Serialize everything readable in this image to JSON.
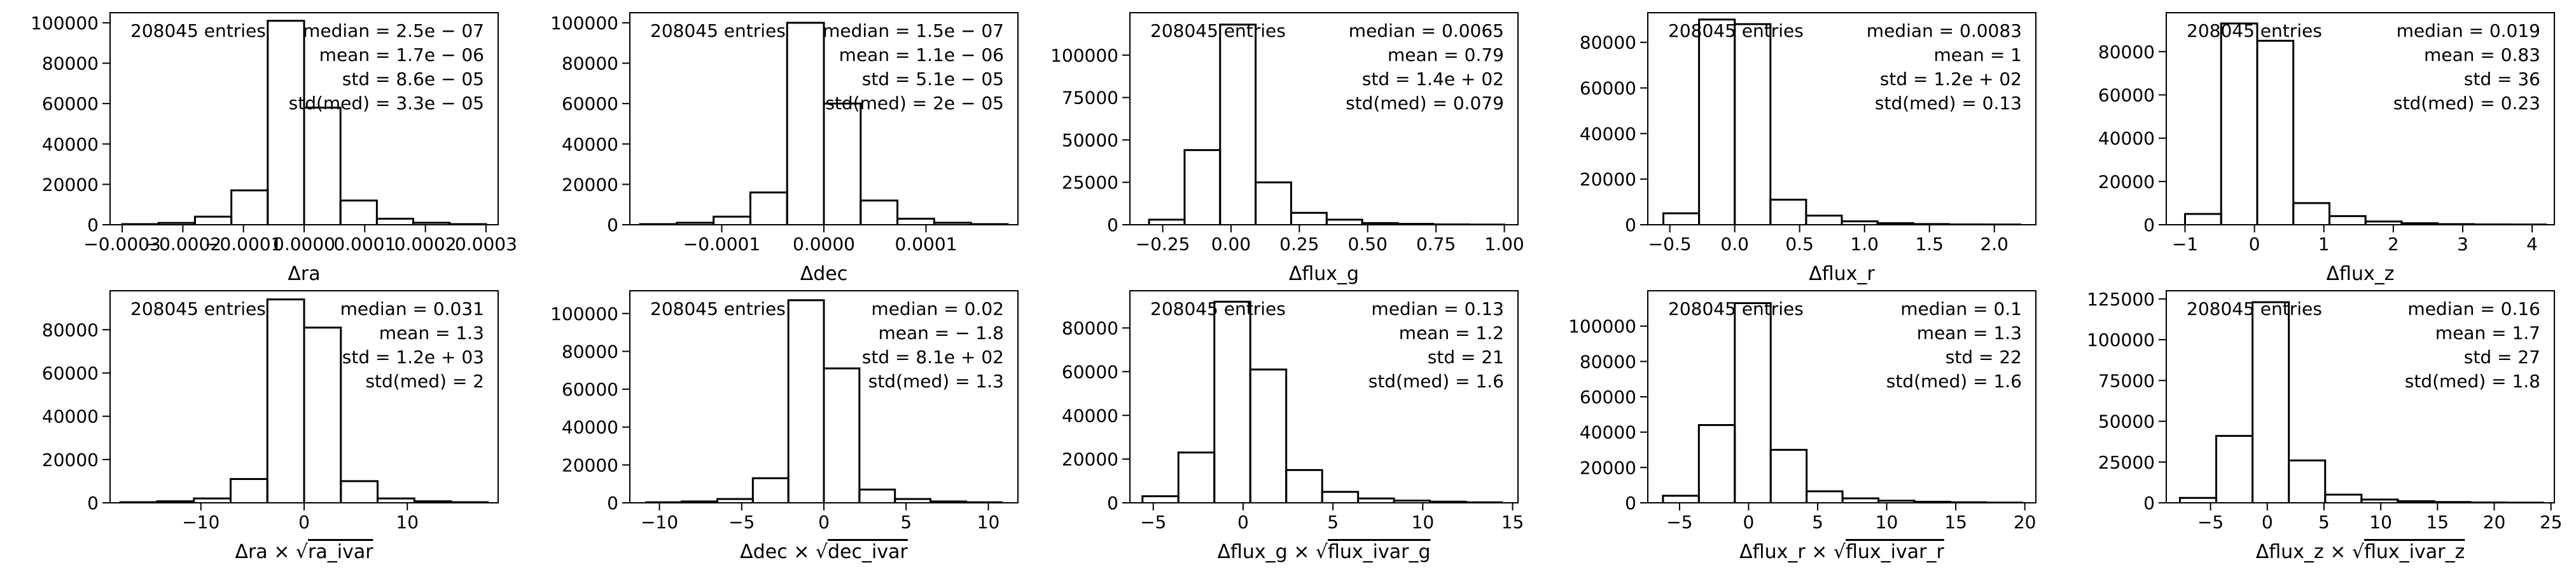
{
  "figure": {
    "entries_label": "208045 entries"
  },
  "chart_data": [
    {
      "type": "histogram",
      "xlabel": "Δra",
      "xlim": [
        -0.00032,
        0.00032
      ],
      "ylim": [
        0,
        105000
      ],
      "xticks": [
        -0.0003,
        -0.0002,
        -0.0001,
        0,
        0.0001,
        0.0002,
        0.0003
      ],
      "xtick_labels": [
        "−0.0003",
        "−0.0002",
        "−0.0001",
        "0.0000",
        "0.0001",
        "0.0002",
        "0.0003"
      ],
      "yticks": [
        0,
        20000,
        40000,
        60000,
        80000,
        100000
      ],
      "ytick_labels": [
        "0",
        "20000",
        "40000",
        "60000",
        "80000",
        "100000"
      ],
      "bin_edges": [
        -0.0003,
        -0.00024,
        -0.00018,
        -0.00012,
        -6e-05,
        0,
        6e-05,
        0.00012,
        0.00018,
        0.00024,
        0.0003
      ],
      "counts": [
        300,
        900,
        4000,
        17000,
        101000,
        58000,
        12000,
        3000,
        1000,
        300
      ],
      "stats": [
        "median = 2.5e − 07",
        "mean = 1.7e − 06",
        "std = 8.6e − 05",
        "std(med) = 3.3e − 05"
      ]
    },
    {
      "type": "histogram",
      "xlabel": "Δdec",
      "xlim": [
        -0.00019,
        0.00019
      ],
      "ylim": [
        0,
        105000
      ],
      "xticks": [
        -0.0001,
        0,
        0.0001
      ],
      "xtick_labels": [
        "−0.0001",
        "0.0000",
        "0.0001"
      ],
      "yticks": [
        0,
        20000,
        40000,
        60000,
        80000,
        100000
      ],
      "ytick_labels": [
        "0",
        "20000",
        "40000",
        "60000",
        "80000",
        "100000"
      ],
      "bin_edges": [
        -0.00018,
        -0.000144,
        -0.000108,
        -7.2e-05,
        -3.6e-05,
        0,
        3.6e-05,
        7.2e-05,
        0.000108,
        0.000144,
        0.00018
      ],
      "counts": [
        300,
        1000,
        4000,
        16000,
        100000,
        60000,
        12000,
        3000,
        1000,
        300
      ],
      "stats": [
        "median = 1.5e − 07",
        "mean = 1.1e − 06",
        "std = 5.1e − 05",
        "std(med) = 2e − 05"
      ]
    },
    {
      "type": "histogram",
      "xlabel": "Δflux_g",
      "xlim": [
        -0.37,
        1.05
      ],
      "ylim": [
        0,
        125000
      ],
      "xticks": [
        -0.25,
        0,
        0.25,
        0.5,
        0.75,
        1.0
      ],
      "xtick_labels": [
        "−0.25",
        "0.00",
        "0.25",
        "0.50",
        "0.75",
        "1.00"
      ],
      "yticks": [
        0,
        25000,
        50000,
        75000,
        100000
      ],
      "ytick_labels": [
        "0",
        "25000",
        "50000",
        "75000",
        "100000"
      ],
      "bin_edges": [
        -0.3,
        -0.17,
        -0.04,
        0.09,
        0.22,
        0.35,
        0.48,
        0.61,
        0.74,
        0.87,
        1.0
      ],
      "counts": [
        3000,
        44000,
        118000,
        25000,
        7000,
        3000,
        1000,
        500,
        200,
        100
      ],
      "stats": [
        "median = 0.0065",
        "mean = 0.79",
        "std = 1.4e + 02",
        "std(med) = 0.079"
      ]
    },
    {
      "type": "histogram",
      "xlabel": "Δflux_r",
      "xlim": [
        -0.67,
        2.32
      ],
      "ylim": [
        0,
        93000
      ],
      "xticks": [
        -0.5,
        0,
        0.5,
        1.0,
        1.5,
        2.0
      ],
      "xtick_labels": [
        "−0.5",
        "0.0",
        "0.5",
        "1.0",
        "1.5",
        "2.0"
      ],
      "yticks": [
        0,
        20000,
        40000,
        60000,
        80000
      ],
      "ytick_labels": [
        "0",
        "20000",
        "40000",
        "60000",
        "80000"
      ],
      "bin_edges": [
        -0.55,
        -0.275,
        0,
        0.275,
        0.55,
        0.825,
        1.1,
        1.375,
        1.65,
        1.925,
        2.2
      ],
      "counts": [
        5000,
        90000,
        88000,
        11000,
        4000,
        1500,
        700,
        300,
        150,
        100
      ],
      "stats": [
        "median = 0.0083",
        "mean = 1",
        "std = 1.2e + 02",
        "std(med) = 0.13"
      ]
    },
    {
      "type": "histogram",
      "xlabel": "Δflux_z",
      "xlim": [
        -1.27,
        4.32
      ],
      "ylim": [
        0,
        98000
      ],
      "xticks": [
        -1,
        0,
        1,
        2,
        3,
        4
      ],
      "xtick_labels": [
        "−1",
        "0",
        "1",
        "2",
        "3",
        "4"
      ],
      "yticks": [
        0,
        20000,
        40000,
        60000,
        80000
      ],
      "ytick_labels": [
        "0",
        "20000",
        "40000",
        "60000",
        "80000"
      ],
      "bin_edges": [
        -1.0,
        -0.48,
        0.04,
        0.56,
        1.08,
        1.6,
        2.12,
        2.64,
        3.16,
        3.68,
        4.2
      ],
      "counts": [
        5000,
        93000,
        85000,
        10000,
        4000,
        1500,
        700,
        300,
        150,
        100
      ],
      "stats": [
        "median = 0.019",
        "mean = 0.83",
        "std = 36",
        "std(med) = 0.23"
      ]
    },
    {
      "type": "histogram",
      "xlabel": "Δra × √ra_ivar",
      "xlim": [
        -18.8,
        18.8
      ],
      "ylim": [
        0,
        98000
      ],
      "xticks": [
        -10,
        0,
        10
      ],
      "xtick_labels": [
        "−10",
        "0",
        "10"
      ],
      "yticks": [
        0,
        20000,
        40000,
        60000,
        80000
      ],
      "ytick_labels": [
        "0",
        "20000",
        "40000",
        "60000",
        "80000"
      ],
      "bin_edges": [
        -17.8,
        -14.24,
        -10.68,
        -7.12,
        -3.56,
        0,
        3.56,
        7.12,
        10.68,
        14.24,
        17.8
      ],
      "counts": [
        300,
        700,
        2000,
        11000,
        94000,
        81000,
        10000,
        2000,
        700,
        300
      ],
      "stats": [
        "median = 0.031",
        "mean = 1.3",
        "std = 1.2e + 03",
        "std(med) = 2"
      ]
    },
    {
      "type": "histogram",
      "xlabel": "Δdec × √dec_ivar",
      "xlim": [
        -11.8,
        11.8
      ],
      "ylim": [
        0,
        112000
      ],
      "xticks": [
        -10,
        -5,
        0,
        5,
        10
      ],
      "xtick_labels": [
        "−10",
        "−5",
        "0",
        "5",
        "10"
      ],
      "yticks": [
        0,
        20000,
        40000,
        60000,
        80000,
        100000
      ],
      "ytick_labels": [
        "0",
        "20000",
        "40000",
        "60000",
        "80000",
        "100000"
      ],
      "bin_edges": [
        -10.8,
        -8.64,
        -6.48,
        -4.32,
        -2.16,
        0,
        2.16,
        4.32,
        6.48,
        8.64,
        10.8
      ],
      "counts": [
        300,
        700,
        2000,
        13000,
        107000,
        71000,
        7000,
        2000,
        700,
        300
      ],
      "stats": [
        "median = 0.02",
        "mean = − 1.8",
        "std = 8.1e + 02",
        "std(med) = 1.3"
      ]
    },
    {
      "type": "histogram",
      "xlabel": "Δflux_g × √flux_ivar_g",
      "xlim": [
        -6.3,
        15.3
      ],
      "ylim": [
        0,
        97000
      ],
      "xticks": [
        -5,
        0,
        5,
        10,
        15
      ],
      "xtick_labels": [
        "−5",
        "0",
        "5",
        "10",
        "15"
      ],
      "yticks": [
        0,
        20000,
        40000,
        60000,
        80000
      ],
      "ytick_labels": [
        "0",
        "20000",
        "40000",
        "60000",
        "80000"
      ],
      "bin_edges": [
        -5.6,
        -3.6,
        -1.6,
        0.4,
        2.4,
        4.4,
        6.4,
        8.4,
        10.4,
        12.4,
        14.4
      ],
      "counts": [
        3000,
        23000,
        92000,
        61000,
        15000,
        5000,
        2000,
        1000,
        500,
        200
      ],
      "stats": [
        "median = 0.13",
        "mean = 1.2",
        "std = 21",
        "std(med) = 1.6"
      ]
    },
    {
      "type": "histogram",
      "xlabel": "Δflux_r × √flux_ivar_r",
      "xlim": [
        -7.3,
        20.8
      ],
      "ylim": [
        0,
        120000
      ],
      "xticks": [
        -5,
        0,
        5,
        10,
        15,
        20
      ],
      "xtick_labels": [
        "−5",
        "0",
        "5",
        "10",
        "15",
        "20"
      ],
      "yticks": [
        0,
        20000,
        40000,
        60000,
        80000,
        100000
      ],
      "ytick_labels": [
        "0",
        "20000",
        "40000",
        "60000",
        "80000",
        "100000"
      ],
      "bin_edges": [
        -6.2,
        -3.6,
        -1.0,
        1.6,
        4.2,
        6.8,
        9.4,
        12.0,
        14.6,
        17.2,
        19.8
      ],
      "counts": [
        4000,
        44000,
        113000,
        30000,
        6500,
        2500,
        1200,
        600,
        300,
        150
      ],
      "stats": [
        "median = 0.1",
        "mean = 1.3",
        "std = 22",
        "std(med) = 1.6"
      ]
    },
    {
      "type": "histogram",
      "xlabel": "Δflux_z × √flux_ivar_z",
      "xlim": [
        -8.9,
        25.3
      ],
      "ylim": [
        0,
        130000
      ],
      "xticks": [
        -5,
        0,
        5,
        10,
        15,
        20,
        25
      ],
      "xtick_labels": [
        "−5",
        "0",
        "5",
        "10",
        "15",
        "20",
        "25"
      ],
      "yticks": [
        0,
        25000,
        50000,
        75000,
        100000,
        125000
      ],
      "ytick_labels": [
        "0",
        "25000",
        "50000",
        "75000",
        "100000",
        "125000"
      ],
      "bin_edges": [
        -7.7,
        -4.5,
        -1.3,
        1.9,
        5.1,
        8.3,
        11.5,
        14.7,
        17.9,
        21.1,
        24.3
      ],
      "counts": [
        3000,
        41000,
        123000,
        26000,
        5000,
        2000,
        1000,
        500,
        200,
        100
      ],
      "stats": [
        "median = 0.16",
        "mean = 1.7",
        "std = 27",
        "std(med) = 1.8"
      ]
    }
  ]
}
